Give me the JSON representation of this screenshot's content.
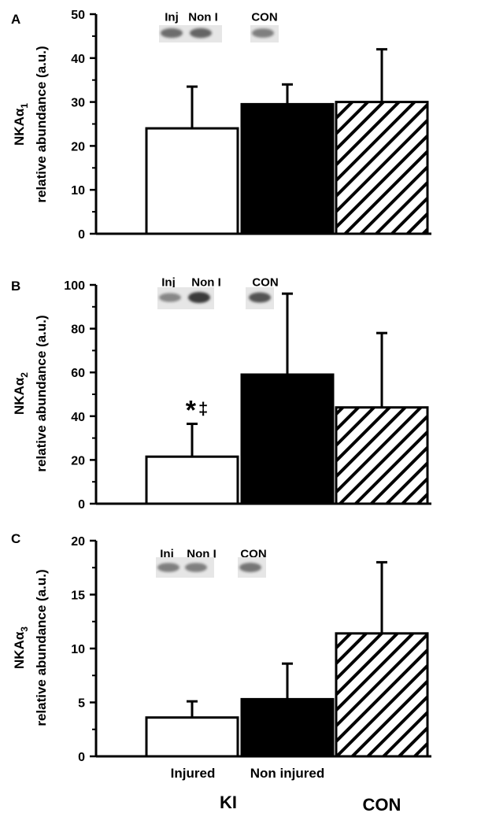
{
  "chart_data": [
    {
      "type": "bar",
      "panel": "A",
      "ylabel_top": "NKAα",
      "ylabel_sub": "1",
      "ylabel_bottom": "relative abundance (a.u.)",
      "ylim": [
        0,
        50
      ],
      "yticks": [
        "0",
        "10",
        "20",
        "30",
        "40",
        "50"
      ],
      "categories": [
        "Injured",
        "Non injured",
        "CON"
      ],
      "values": [
        24,
        29.5,
        30
      ],
      "errors": [
        9.5,
        4.5,
        12
      ],
      "bar_styles": [
        "white",
        "black",
        "hatched"
      ],
      "blot_labels": [
        "Inj",
        "Non I",
        "CON"
      ],
      "annotation": ""
    },
    {
      "type": "bar",
      "panel": "B",
      "ylabel_top": "NKAα",
      "ylabel_sub": "2",
      "ylabel_bottom": "relative abundance (a.u.)",
      "ylim": [
        0,
        100
      ],
      "yticks": [
        "0",
        "20",
        "40",
        "60",
        "80",
        "100"
      ],
      "categories": [
        "Injured",
        "Non injured",
        "CON"
      ],
      "values": [
        21.5,
        59,
        44
      ],
      "errors": [
        15,
        37,
        34
      ],
      "bar_styles": [
        "white",
        "black",
        "hatched"
      ],
      "blot_labels": [
        "Inj",
        "Non I",
        "CON"
      ],
      "annotation": "*‡"
    },
    {
      "type": "bar",
      "panel": "C",
      "ylabel_top": "NKAα",
      "ylabel_sub": "3",
      "ylabel_bottom": "relative abundance (a.u.)",
      "ylim": [
        0,
        20
      ],
      "yticks": [
        "0",
        "5",
        "10",
        "15",
        "20"
      ],
      "categories": [
        "Injured",
        "Non injured",
        "CON"
      ],
      "values": [
        3.6,
        5.3,
        11.4
      ],
      "errors": [
        1.5,
        3.3,
        6.6
      ],
      "bar_styles": [
        "white",
        "black",
        "hatched"
      ],
      "blot_labels": [
        "Inj",
        "Non I",
        "CON"
      ],
      "annotation": ""
    }
  ],
  "x_labels": {
    "categories": [
      "Injured",
      "Non injured"
    ],
    "groups": [
      "KI",
      "CON"
    ]
  },
  "colors": {
    "bar_fill_black": "#000000",
    "bar_fill_white": "#ffffff",
    "hatch": "#000000",
    "blot_band": "#3a3a3a"
  }
}
